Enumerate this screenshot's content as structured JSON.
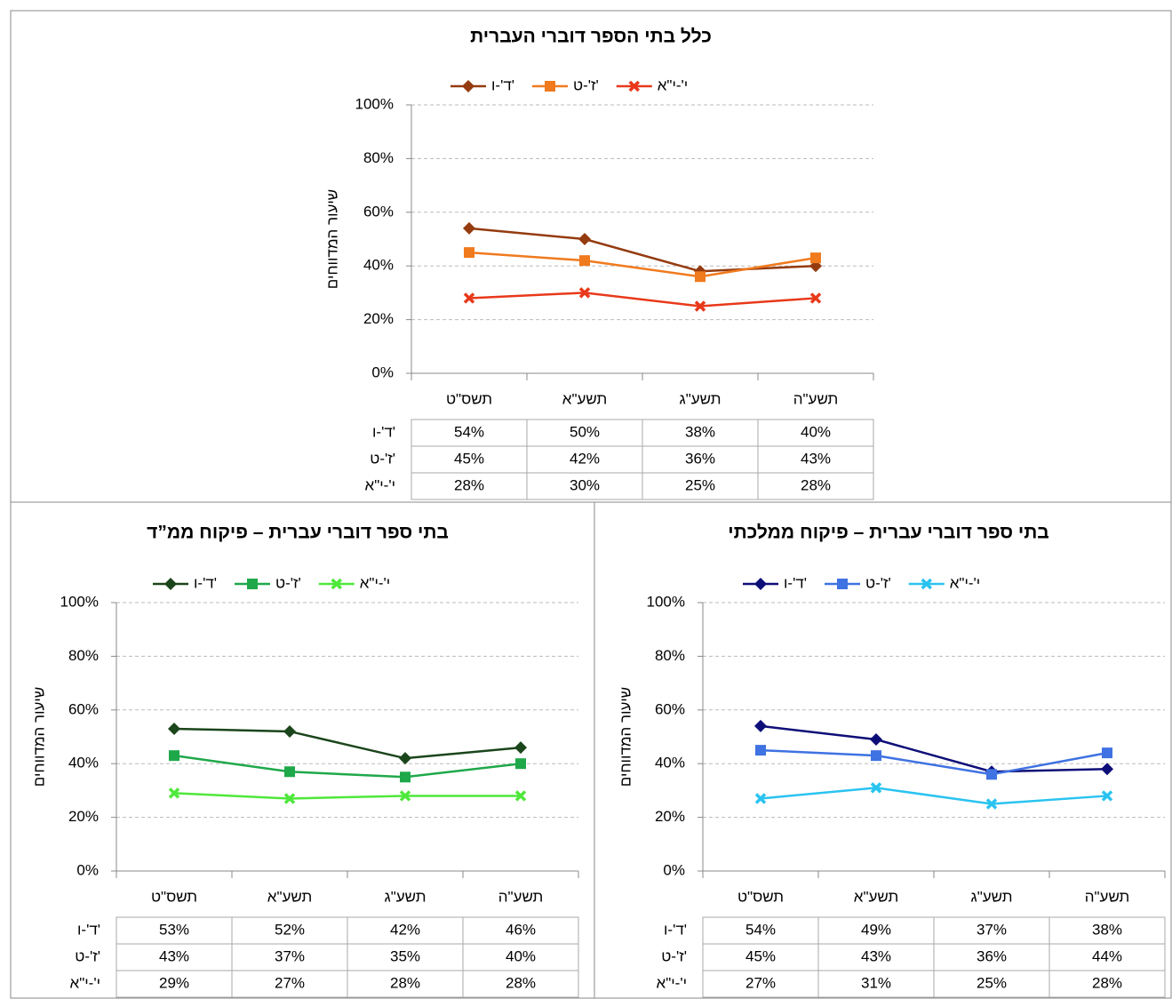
{
  "chart_data": [
    {
      "type": "line",
      "title": "כלל בתי הספר דוברי העברית",
      "y_label": "שיעור המדווחים",
      "categories": [
        "תשס\"ט",
        "תשע\"א",
        "תשע\"ג",
        "תשע\"ה"
      ],
      "series": [
        {
          "name": "ד'-ו'",
          "color": "#943b0f",
          "values": [
            54,
            50,
            38,
            40
          ],
          "value_labels": [
            "54%",
            "50%",
            "38%",
            "40%"
          ]
        },
        {
          "name": "ז'-ט'",
          "color": "#f07a1e",
          "values": [
            45,
            42,
            36,
            43
          ],
          "value_labels": [
            "45%",
            "42%",
            "36%",
            "43%"
          ]
        },
        {
          "name": "י'-י\"א",
          "color": "#e8391a",
          "values": [
            28,
            30,
            25,
            28
          ],
          "value_labels": [
            "28%",
            "30%",
            "25%",
            "28%"
          ]
        }
      ],
      "ylim": [
        0,
        100
      ],
      "yticks": [
        {
          "value": 0,
          "label": "0%"
        },
        {
          "value": 20,
          "label": "20%"
        },
        {
          "value": 40,
          "label": "40%"
        },
        {
          "value": 60,
          "label": "60%"
        },
        {
          "value": 80,
          "label": "80%"
        },
        {
          "value": 100,
          "label": "100%"
        }
      ],
      "grid": true
    },
    {
      "type": "line",
      "title": "בתי ספר דוברי עברית – פיקוח ממ”ד",
      "y_label": "שיעור המדווחים",
      "categories": [
        "תשס\"ט",
        "תשע\"א",
        "תשע\"ג",
        "תשע\"ה"
      ],
      "series": [
        {
          "name": "ד'-ו'",
          "color": "#1b451b",
          "values": [
            53,
            52,
            42,
            46
          ],
          "value_labels": [
            "53%",
            "52%",
            "42%",
            "46%"
          ]
        },
        {
          "name": "ז'-ט'",
          "color": "#1fa84a",
          "values": [
            43,
            37,
            35,
            40
          ],
          "value_labels": [
            "43%",
            "37%",
            "35%",
            "40%"
          ]
        },
        {
          "name": "י'-י\"א",
          "color": "#4ee83a",
          "values": [
            29,
            27,
            28,
            28
          ],
          "value_labels": [
            "29%",
            "27%",
            "28%",
            "28%"
          ]
        }
      ],
      "ylim": [
        0,
        100
      ],
      "yticks": [
        {
          "value": 0,
          "label": "0%"
        },
        {
          "value": 20,
          "label": "20%"
        },
        {
          "value": 40,
          "label": "40%"
        },
        {
          "value": 60,
          "label": "60%"
        },
        {
          "value": 80,
          "label": "80%"
        },
        {
          "value": 100,
          "label": "100%"
        }
      ],
      "grid": true
    },
    {
      "type": "line",
      "title": "בתי ספר דוברי עברית – פיקוח ממלכתי",
      "y_label": "שיעור המדווחים",
      "categories": [
        "תשס\"ט",
        "תשע\"א",
        "תשע\"ג",
        "תשע\"ה"
      ],
      "series": [
        {
          "name": "ד'-ו'",
          "color": "#0e0e78",
          "values": [
            54,
            49,
            37,
            38
          ],
          "value_labels": [
            "54%",
            "49%",
            "37%",
            "38%"
          ]
        },
        {
          "name": "ז'-ט'",
          "color": "#3f72e2",
          "values": [
            45,
            43,
            36,
            44
          ],
          "value_labels": [
            "45%",
            "43%",
            "36%",
            "44%"
          ]
        },
        {
          "name": "י'-י\"א",
          "color": "#2ac3f0",
          "values": [
            27,
            31,
            25,
            28
          ],
          "value_labels": [
            "27%",
            "31%",
            "25%",
            "28%"
          ]
        }
      ],
      "ylim": [
        0,
        100
      ],
      "yticks": [
        {
          "value": 0,
          "label": "0%"
        },
        {
          "value": 20,
          "label": "20%"
        },
        {
          "value": 40,
          "label": "40%"
        },
        {
          "value": 60,
          "label": "60%"
        },
        {
          "value": 80,
          "label": "80%"
        },
        {
          "value": 100,
          "label": "100%"
        }
      ],
      "grid": true
    }
  ]
}
